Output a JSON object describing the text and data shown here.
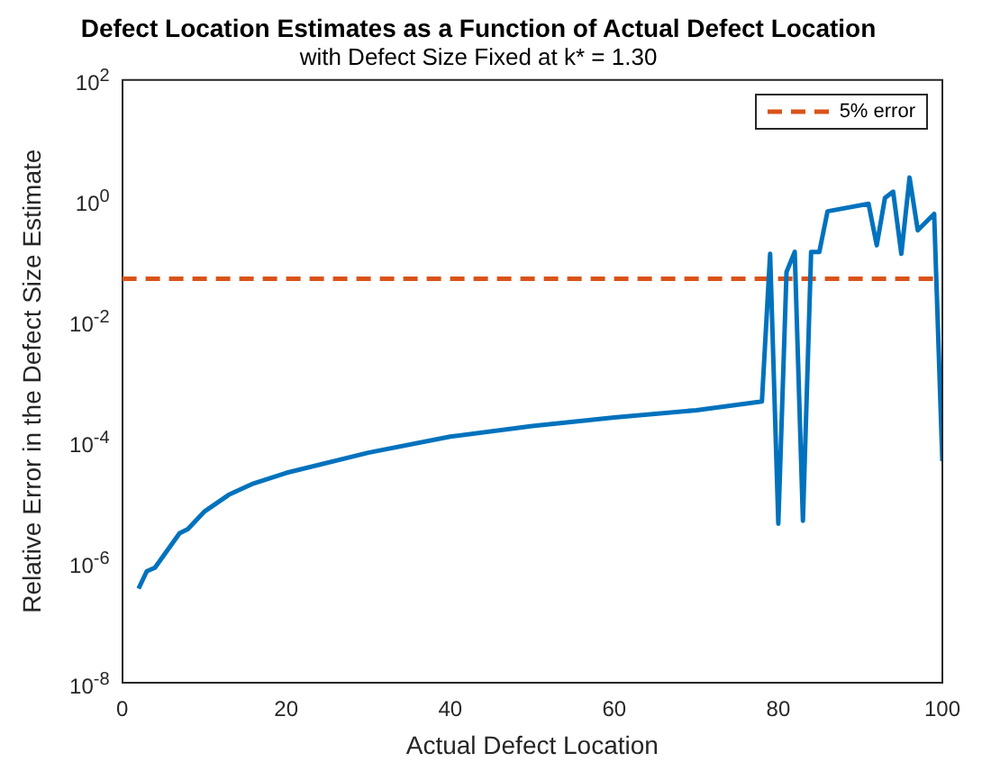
{
  "chart_data": {
    "type": "line",
    "title": "Defect Location Estimates as a Function of Actual Defect Location",
    "subtitle": "with Defect Size Fixed at k* = 1.30",
    "xlabel": "Actual Defect Location",
    "ylabel": "Relative Error in the Defect Size Estimate",
    "x": [
      2,
      3,
      4,
      7,
      8,
      10,
      13,
      16,
      20,
      30,
      40,
      50,
      60,
      70,
      78,
      79,
      80,
      81,
      82,
      83,
      84,
      85,
      86,
      91,
      92,
      93,
      94,
      95,
      96,
      97,
      99,
      100
    ],
    "series": [
      {
        "color": "#0072bd",
        "values": [
          3.6e-07,
          7e-07,
          8e-07,
          3e-06,
          3.5e-06,
          6.8e-06,
          1.3e-05,
          2e-05,
          3e-05,
          6.5e-05,
          0.00012,
          0.00018,
          0.00025,
          0.00033,
          0.00046,
          0.13,
          4.3e-06,
          0.065,
          0.14,
          4.8e-06,
          0.14,
          0.14,
          0.66,
          0.88,
          0.18,
          1.1,
          1.4,
          0.13,
          2.4,
          0.32,
          0.6,
          4.7e-05
        ]
      }
    ],
    "ref_lines": [
      {
        "axis": "y",
        "value": 0.05,
        "label": "5% error",
        "color": "#d95319",
        "line_style": "dashed"
      }
    ],
    "xlim": [
      0,
      100
    ],
    "xticks": [
      0,
      20,
      40,
      60,
      80,
      100
    ],
    "ylim": [
      1e-08,
      100
    ],
    "yticks": [
      {
        "value": 1e-08,
        "label": "10$^{-8}$"
      },
      {
        "value": 1e-06,
        "label": "10$^{-6}$"
      },
      {
        "value": 0.0001,
        "label": "10$^{-4}$"
      },
      {
        "value": 0.01,
        "label": "10$^{-2}$"
      },
      {
        "value": 1,
        "label": "10$^{0}$"
      },
      {
        "value": 100,
        "label": "10$^{2}$"
      }
    ],
    "log": "y",
    "grid": false,
    "legend": "top right",
    "marker": "none",
    "line_style": "solid"
  }
}
